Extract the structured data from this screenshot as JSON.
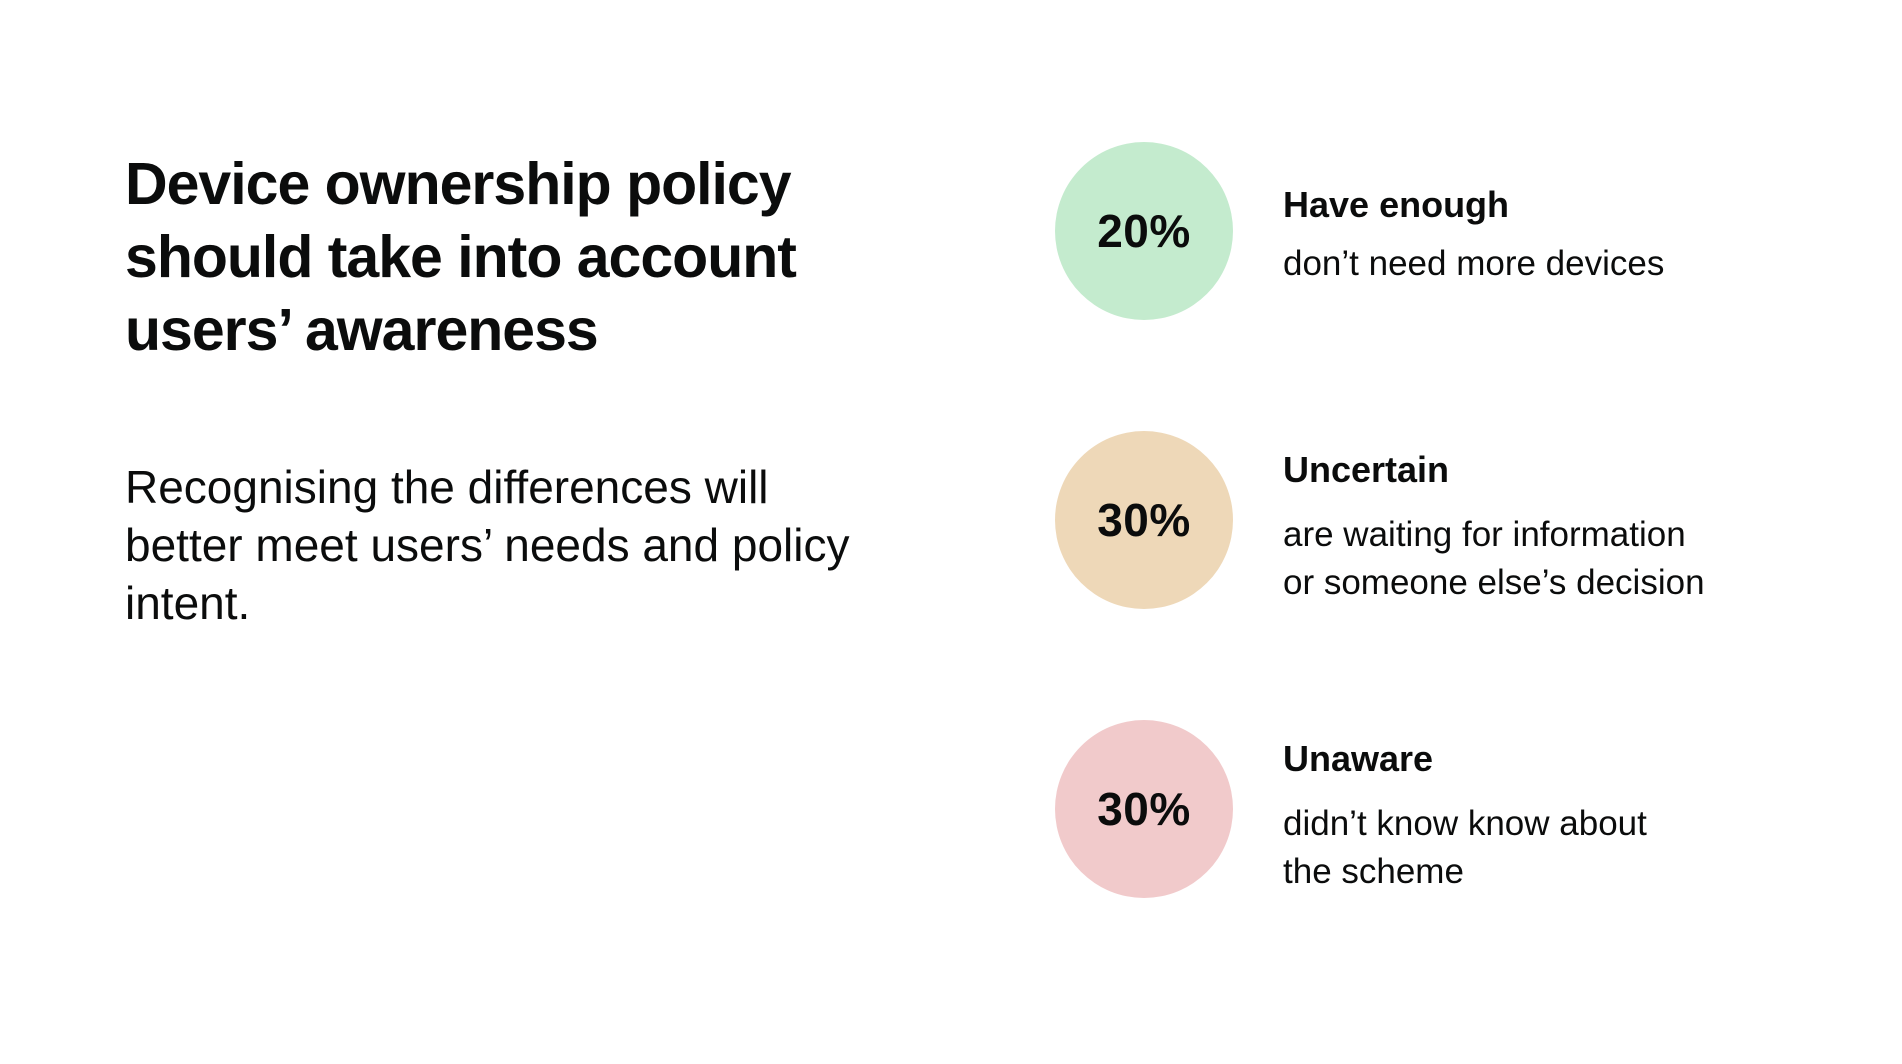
{
  "heading": "Device ownership policy should take into account users’ awareness",
  "subheading": "Recognising the differences will better meet users’ needs and policy intent.",
  "stats": [
    {
      "percent": "20%",
      "label": "Have enough",
      "description": [
        "don’t need more devices"
      ],
      "color": "#c4ebce"
    },
    {
      "percent": "30%",
      "label": "Uncertain",
      "description": [
        "are waiting for information",
        "or someone else’s decision"
      ],
      "color": "#eed8b8"
    },
    {
      "percent": "30%",
      "label": "Unaware",
      "description": [
        "didn’t know know about",
        "the scheme"
      ],
      "color": "#f1cacb"
    }
  ]
}
